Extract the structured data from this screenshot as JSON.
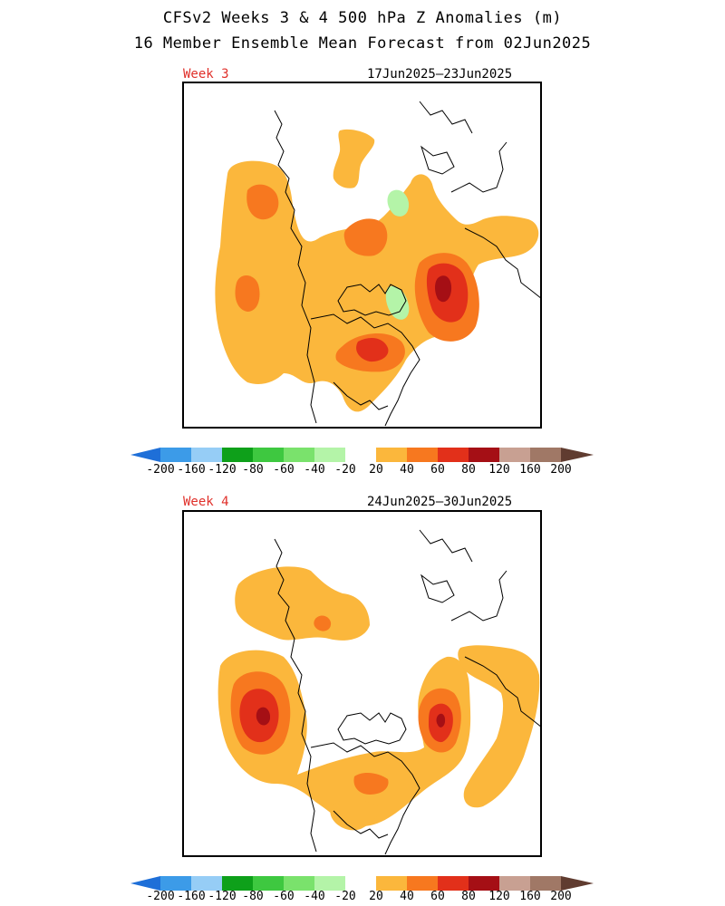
{
  "title": {
    "line1": "CFSv2 Weeks 3 & 4 500 hPa Z Anomalies (m)",
    "line2": "16 Member Ensemble Mean Forecast from 02Jun2025"
  },
  "panels": [
    {
      "week": "Week 3",
      "dates": "17Jun2025–23Jun2025"
    },
    {
      "week": "Week 4",
      "dates": "24Jun2025–30Jun2025"
    }
  ],
  "colorbar": {
    "labels": [
      "-200",
      "-160",
      "-120",
      "-80",
      "-60",
      "-40",
      "-20",
      "20",
      "40",
      "60",
      "80",
      "120",
      "160",
      "200"
    ],
    "colors": [
      "#1e6fd8",
      "#3c9be8",
      "#96cdf6",
      "#0ea01a",
      "#3ec840",
      "#7ae26c",
      "#b4f4a8",
      "#ffffff",
      "#fbb73c",
      "#f7781f",
      "#e2301a",
      "#a50f15",
      "#c8a092",
      "#a07866",
      "#603c30"
    ]
  },
  "map_colors": {
    "c20": "#fbb73c",
    "c40": "#f7781f",
    "c60": "#e2301a",
    "c80": "#a50f15",
    "cneg20": "#b4f4a8"
  }
}
